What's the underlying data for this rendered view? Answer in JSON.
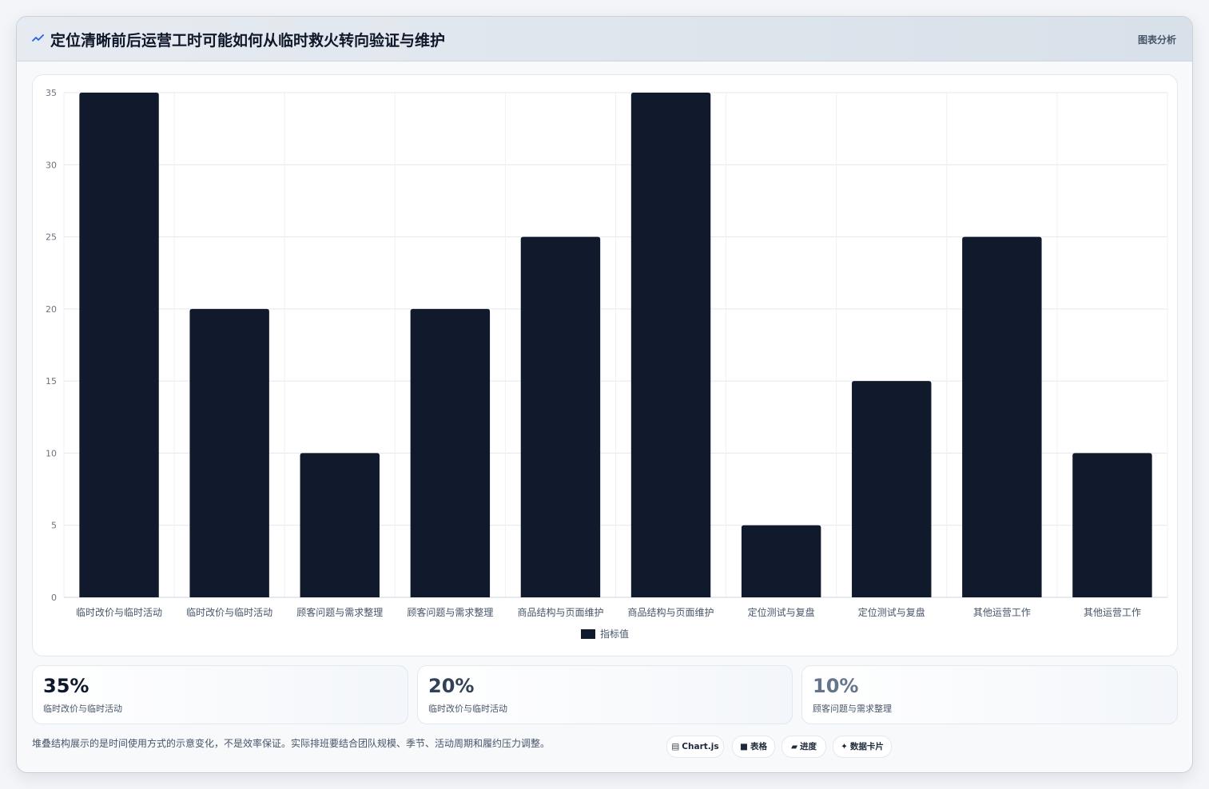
{
  "header": {
    "title": "定位清晰前后运营工时可能如何从临时救火转向验证与维护",
    "tag": "图表分析",
    "icon": "line-chart-icon"
  },
  "chart_data": {
    "type": "bar",
    "categories": [
      "临时改价与临时活动",
      "临时改价与临时活动",
      "顾客问题与需求整理",
      "顾客问题与需求整理",
      "商品结构与页面维护",
      "商品结构与页面维护",
      "定位测试与复盘",
      "定位测试与复盘",
      "其他运营工作",
      "其他运营工作"
    ],
    "series": [
      {
        "name": "指标值",
        "values": [
          35,
          20,
          10,
          20,
          25,
          35,
          5,
          15,
          25,
          10
        ],
        "color": "#101a2c"
      }
    ],
    "ylim": [
      0,
      35
    ],
    "yticks": [
      0,
      5,
      10,
      15,
      20,
      25,
      30,
      35
    ],
    "grid": true,
    "legend": "bottom"
  },
  "stats": [
    {
      "value": "35%",
      "label": "临时改价与临时活动",
      "color": "#0f172a"
    },
    {
      "value": "20%",
      "label": "临时改价与临时活动",
      "color": "#334155"
    },
    {
      "value": "10%",
      "label": "顾客问题与需求整理",
      "color": "#64748b"
    }
  ],
  "footnote": "堆叠结构展示的是时间使用方式的示意变化，不是效率保证。实际排班要结合团队规模、季节、活动周期和履约压力调整。",
  "pills": [
    {
      "label": "Chart.js",
      "icon": "▤"
    },
    {
      "label": "表格",
      "icon": "■"
    },
    {
      "label": "进度",
      "icon": "▰"
    },
    {
      "label": "数据卡片",
      "icon": "✦"
    }
  ]
}
